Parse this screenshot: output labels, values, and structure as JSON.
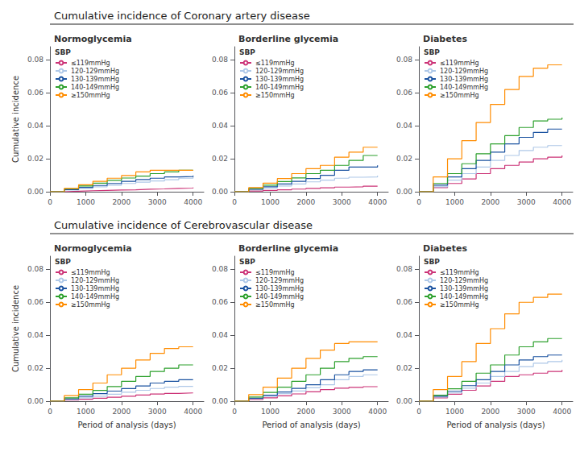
{
  "chart_data": [
    {
      "type": "step",
      "title": "Cumulative incidence of Coronary artery disease",
      "subtitle": "Normoglycemia",
      "ylabel": "Cumulative incidence",
      "legend_title": "SBP",
      "x": [
        0,
        400,
        800,
        1200,
        1600,
        2000,
        2400,
        2800,
        3200,
        3600,
        4000
      ],
      "series": [
        {
          "name": "≤119mmHg",
          "color": "#cc3377",
          "values": [
            0,
            0.0003,
            0.0006,
            0.0008,
            0.001,
            0.0012,
            0.0015,
            0.0017,
            0.002,
            0.0022,
            0.0026
          ]
        },
        {
          "name": "120-129mmHg",
          "color": "#aec8e8",
          "values": [
            0,
            0.001,
            0.002,
            0.003,
            0.004,
            0.005,
            0.0058,
            0.0065,
            0.0073,
            0.0082,
            0.0092
          ]
        },
        {
          "name": "130-139mmHg",
          "color": "#1a52a0",
          "values": [
            0,
            0.0013,
            0.0026,
            0.0038,
            0.005,
            0.0063,
            0.0074,
            0.0082,
            0.009,
            0.0092,
            0.0098
          ]
        },
        {
          "name": "140-149mmHg",
          "color": "#2ca02c",
          "values": [
            0,
            0.0017,
            0.0035,
            0.0052,
            0.0069,
            0.0083,
            0.0095,
            0.011,
            0.012,
            0.013,
            0.013
          ]
        },
        {
          "name": "≥150mmHg",
          "color": "#ff8c00",
          "values": [
            0,
            0.002,
            0.0042,
            0.0063,
            0.0082,
            0.0098,
            0.012,
            0.013,
            0.013,
            0.013,
            0.013
          ]
        }
      ],
      "xlim": [
        0,
        4300
      ],
      "ylim": [
        0,
        0.088
      ],
      "xticks": [
        0,
        1000,
        2000,
        3000,
        4000
      ],
      "yticks": [
        {
          "value": 0,
          "label": "0.00"
        },
        0.02,
        0.04,
        0.06,
        0.08
      ],
      "grid": false,
      "legend": "top-left"
    },
    {
      "type": "step",
      "subtitle": "Borderline glycemia",
      "legend_title": "SBP",
      "x": [
        0,
        400,
        800,
        1200,
        1600,
        2000,
        2400,
        2800,
        3200,
        3600,
        4000
      ],
      "series": [
        {
          "name": "≤119mmHg",
          "color": "#cc3377",
          "values": [
            0,
            0.0004,
            0.0008,
            0.0012,
            0.0016,
            0.002,
            0.0024,
            0.0028,
            0.003,
            0.0034,
            0.0037
          ]
        },
        {
          "name": "120-129mmHg",
          "color": "#aec8e8",
          "values": [
            0,
            0.0011,
            0.0022,
            0.0035,
            0.0047,
            0.006,
            0.007,
            0.0082,
            0.0088,
            0.009,
            0.0098
          ]
        },
        {
          "name": "130-139mmHg",
          "color": "#1a52a0",
          "values": [
            0,
            0.0015,
            0.003,
            0.0047,
            0.0063,
            0.008,
            0.01,
            0.013,
            0.015,
            0.015,
            0.016
          ]
        },
        {
          "name": "140-149mmHg",
          "color": "#2ca02c",
          "values": [
            0,
            0.002,
            0.004,
            0.0062,
            0.0084,
            0.011,
            0.013,
            0.016,
            0.019,
            0.022,
            0.022
          ]
        },
        {
          "name": "≥150mmHg",
          "color": "#ff8c00",
          "values": [
            0,
            0.0025,
            0.0052,
            0.008,
            0.011,
            0.014,
            0.016,
            0.021,
            0.024,
            0.027,
            0.027
          ]
        }
      ],
      "xlim": [
        0,
        4300
      ],
      "ylim": [
        0,
        0.088
      ],
      "xticks": [
        0,
        1000,
        2000,
        3000,
        4000
      ],
      "yticks": [
        {
          "value": 0,
          "label": "0.00"
        },
        0.02,
        0.04,
        0.06,
        0.08
      ],
      "grid": false,
      "legend": "top-left"
    },
    {
      "type": "step",
      "subtitle": "Diabetes",
      "legend_title": "SBP",
      "x": [
        0,
        400,
        800,
        1200,
        1600,
        2000,
        2400,
        2800,
        3200,
        3600,
        4000
      ],
      "series": [
        {
          "name": "≤119mmHg",
          "color": "#cc3377",
          "values": [
            0,
            0.0025,
            0.005,
            0.0078,
            0.011,
            0.014,
            0.016,
            0.018,
            0.02,
            0.021,
            0.022
          ]
        },
        {
          "name": "120-129mmHg",
          "color": "#aec8e8",
          "values": [
            0,
            0.003,
            0.007,
            0.011,
            0.015,
            0.019,
            0.022,
            0.025,
            0.027,
            0.028,
            0.028
          ]
        },
        {
          "name": "130-139mmHg",
          "color": "#1a52a0",
          "values": [
            0,
            0.004,
            0.009,
            0.014,
            0.019,
            0.024,
            0.029,
            0.033,
            0.036,
            0.038,
            0.038
          ]
        },
        {
          "name": "140-149mmHg",
          "color": "#2ca02c",
          "values": [
            0,
            0.005,
            0.011,
            0.017,
            0.023,
            0.029,
            0.034,
            0.039,
            0.043,
            0.044,
            0.045
          ]
        },
        {
          "name": "≥150mmHg",
          "color": "#ff8c00",
          "values": [
            0,
            0.009,
            0.02,
            0.031,
            0.042,
            0.053,
            0.062,
            0.07,
            0.075,
            0.077,
            0.077
          ]
        }
      ],
      "xlim": [
        0,
        4300
      ],
      "ylim": [
        0,
        0.088
      ],
      "xticks": [
        0,
        1000,
        2000,
        3000,
        4000
      ],
      "yticks": [
        {
          "value": 0,
          "label": "0.00"
        },
        0.02,
        0.04,
        0.06,
        0.08
      ],
      "grid": false,
      "legend": "top-left"
    },
    {
      "type": "step",
      "title": "Cumulative incidence of Cerebrovascular disease",
      "subtitle": "Normoglycemia",
      "ylabel": "Cumulative incidence",
      "xlabel": "Period of analysis (days)",
      "legend_title": "SBP",
      "x": [
        0,
        400,
        800,
        1200,
        1600,
        2000,
        2400,
        2800,
        3200,
        3600,
        4000
      ],
      "series": [
        {
          "name": "≤119mmHg",
          "color": "#cc3377",
          "values": [
            0,
            0.0006,
            0.0012,
            0.0018,
            0.0024,
            0.003,
            0.0037,
            0.0043,
            0.0047,
            0.005,
            0.005
          ]
        },
        {
          "name": "120-129mmHg",
          "color": "#aec8e8",
          "values": [
            0,
            0.001,
            0.002,
            0.003,
            0.0042,
            0.0054,
            0.0066,
            0.0077,
            0.0085,
            0.009,
            0.009
          ]
        },
        {
          "name": "130-139mmHg",
          "color": "#1a52a0",
          "values": [
            0,
            0.0014,
            0.003,
            0.0046,
            0.0061,
            0.0076,
            0.0092,
            0.011,
            0.012,
            0.013,
            0.013
          ]
        },
        {
          "name": "140-149mmHg",
          "color": "#2ca02c",
          "values": [
            0,
            0.002,
            0.0042,
            0.0065,
            0.0089,
            0.012,
            0.015,
            0.018,
            0.02,
            0.022,
            0.022
          ]
        },
        {
          "name": "≥150mmHg",
          "color": "#ff8c00",
          "values": [
            0,
            0.0034,
            0.007,
            0.011,
            0.016,
            0.02,
            0.025,
            0.029,
            0.032,
            0.033,
            0.033
          ]
        }
      ],
      "xlim": [
        0,
        4300
      ],
      "ylim": [
        0,
        0.088
      ],
      "xticks": [
        0,
        1000,
        2000,
        3000,
        4000
      ],
      "yticks": [
        {
          "value": 0,
          "label": "0.00"
        },
        0.02,
        0.04,
        0.06,
        0.08
      ],
      "grid": false,
      "legend": "top-left"
    },
    {
      "type": "step",
      "subtitle": "Borderline glycemia",
      "xlabel": "Period of analysis (days)",
      "legend_title": "SBP",
      "x": [
        0,
        400,
        800,
        1200,
        1600,
        2000,
        2400,
        2800,
        3200,
        3600,
        4000
      ],
      "series": [
        {
          "name": "≤119mmHg",
          "color": "#cc3377",
          "values": [
            0,
            0.001,
            0.002,
            0.0032,
            0.0044,
            0.0057,
            0.007,
            0.0079,
            0.0084,
            0.0088,
            0.009
          ]
        },
        {
          "name": "120-129mmHg",
          "color": "#aec8e8",
          "values": [
            0,
            0.0015,
            0.003,
            0.0046,
            0.0062,
            0.0081,
            0.01,
            0.013,
            0.015,
            0.016,
            0.016
          ]
        },
        {
          "name": "130-139mmHg",
          "color": "#1a52a0",
          "values": [
            0,
            0.0018,
            0.0036,
            0.0056,
            0.0078,
            0.01,
            0.013,
            0.016,
            0.018,
            0.019,
            0.019
          ]
        },
        {
          "name": "140-149mmHg",
          "color": "#2ca02c",
          "values": [
            0,
            0.0025,
            0.0053,
            0.0085,
            0.012,
            0.016,
            0.02,
            0.024,
            0.026,
            0.027,
            0.027
          ]
        },
        {
          "name": "≥150mmHg",
          "color": "#ff8c00",
          "values": [
            0,
            0.004,
            0.0085,
            0.014,
            0.02,
            0.026,
            0.031,
            0.035,
            0.036,
            0.036,
            0.036
          ]
        }
      ],
      "xlim": [
        0,
        4300
      ],
      "ylim": [
        0,
        0.088
      ],
      "xticks": [
        0,
        1000,
        2000,
        3000,
        4000
      ],
      "yticks": [
        {
          "value": 0,
          "label": "0.00"
        },
        0.02,
        0.04,
        0.06,
        0.08
      ],
      "grid": false,
      "legend": "top-left"
    },
    {
      "type": "step",
      "subtitle": "Diabetes",
      "xlabel": "Period of analysis (days)",
      "legend_title": "SBP",
      "x": [
        0,
        400,
        800,
        1200,
        1600,
        2000,
        2400,
        2800,
        3200,
        3600,
        4000
      ],
      "series": [
        {
          "name": "≤119mmHg",
          "color": "#cc3377",
          "values": [
            0,
            0.002,
            0.0042,
            0.0066,
            0.0092,
            0.012,
            0.015,
            0.016,
            0.017,
            0.018,
            0.019
          ]
        },
        {
          "name": "120-129mmHg",
          "color": "#aec8e8",
          "values": [
            0,
            0.0025,
            0.005,
            0.0079,
            0.011,
            0.015,
            0.018,
            0.021,
            0.023,
            0.024,
            0.025
          ]
        },
        {
          "name": "130-139mmHg",
          "color": "#1a52a0",
          "values": [
            0,
            0.003,
            0.006,
            0.0094,
            0.013,
            0.018,
            0.022,
            0.025,
            0.027,
            0.028,
            0.028
          ]
        },
        {
          "name": "140-149mmHg",
          "color": "#2ca02c",
          "values": [
            0,
            0.0036,
            0.0075,
            0.012,
            0.017,
            0.022,
            0.028,
            0.033,
            0.036,
            0.038,
            0.038
          ]
        },
        {
          "name": "≥150mmHg",
          "color": "#ff8c00",
          "values": [
            0,
            0.007,
            0.015,
            0.024,
            0.035,
            0.044,
            0.053,
            0.06,
            0.063,
            0.065,
            0.065
          ]
        }
      ],
      "xlim": [
        0,
        4300
      ],
      "ylim": [
        0,
        0.088
      ],
      "xticks": [
        0,
        1000,
        2000,
        3000,
        4000
      ],
      "yticks": [
        {
          "value": 0,
          "label": "0.00"
        },
        0.02,
        0.04,
        0.06,
        0.08
      ],
      "grid": false,
      "legend": "top-left"
    }
  ]
}
